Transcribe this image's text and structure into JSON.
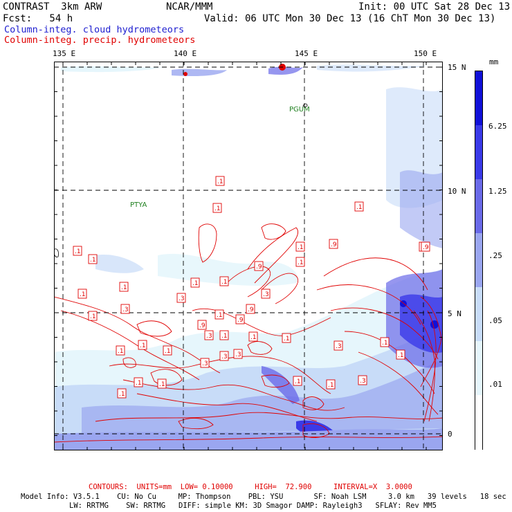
{
  "header": {
    "model": "CONTRAST  3km ARW",
    "org": "NCAR/MMM",
    "init": "Init: 00 UTC Sat 28 Dec 13",
    "fcst": "Fcst:   54 h",
    "valid": "Valid: 06 UTC Mon 30 Dec 13 (16 ChT Mon 30 Dec 13)"
  },
  "legend": {
    "cloud": "Column-integ. cloud hydrometeors",
    "precip": "Column-integ. precip. hydrometeors"
  },
  "axes": {
    "lon_labels": [
      "135 E",
      "140 E",
      "145 E",
      "150 E"
    ],
    "lat_labels": [
      "15 N",
      "10 N",
      "5 N",
      "0"
    ]
  },
  "places": [
    "PGUM",
    "PTYA"
  ],
  "colorbar": {
    "unit": "mm",
    "labels": [
      "6.25",
      "1.25",
      ".25",
      ".05",
      ".01"
    ],
    "colors": [
      "#1010d8",
      "#3a3ae8",
      "#6a6ae8",
      "#9aa6f0",
      "#c8dcf8",
      "#e6f6fc",
      "#ffffff"
    ]
  },
  "contour_labels": [
    ".1",
    ".1",
    ".1",
    ".1",
    ".3",
    ".1",
    ".9",
    ".1",
    ".1",
    ".1",
    ".3",
    ".1",
    ".3",
    ".1",
    ".1",
    ".9",
    ".3",
    ".9",
    ".1",
    ".3",
    ".3",
    ".1",
    ".3",
    ".1",
    ".1",
    ".1",
    ".9",
    ".1",
    ".1",
    ".1",
    ".1",
    ".3",
    ".1",
    ".1",
    ".1",
    ".1",
    ".9",
    ".1",
    ".3",
    ".9",
    ".1",
    ".1"
  ],
  "footer": {
    "contours": "CONTOURS:  UNITS=mm  LOW= 0.10000     HIGH=  72.900     INTERVAL=X  3.0000",
    "line1": "Model Info: V3.5.1    CU: No Cu     MP: Thompson    PBL: YSU       SF: Noah LSM     3.0 km   39 levels   18 sec",
    "line2": "LW: RRTMG    SW: RRTMG   DIFF: simple KM: 3D Smagor DAMP: Rayleigh3   SFLAY: Rev MM5"
  }
}
